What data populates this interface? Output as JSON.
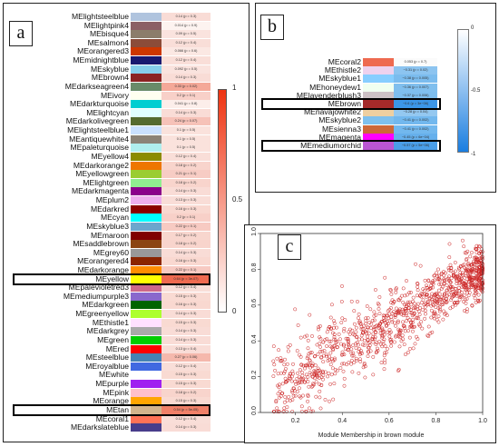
{
  "panel_a": {
    "label": "a",
    "rows": [
      {
        "name": "MElightsteelblue",
        "swatch": "#b0c4de",
        "cell": "0.14 (p = 0.3)",
        "heat": "#f9dcd6"
      },
      {
        "name": "MElightpink4",
        "swatch": "#8b5f65",
        "cell": "0.014 (p = 0.9)",
        "heat": "#fdf3f0"
      },
      {
        "name": "MEbisque4",
        "swatch": "#8b7d6b",
        "cell": "0.09 (p = 0.5)",
        "heat": "#fae3de"
      },
      {
        "name": "MEsalmon4",
        "swatch": "#8b4c39",
        "cell": "0.12 (p = 0.4)",
        "heat": "#f9ded8"
      },
      {
        "name": "MEorangered3",
        "swatch": "#cd3700",
        "cell": "0.066 (p = 0.6)",
        "heat": "#fbe8e3"
      },
      {
        "name": "MEmidnightblue",
        "swatch": "#191970",
        "cell": "0.12 (p = 0.4)",
        "heat": "#f9ded8"
      },
      {
        "name": "MEskyblue",
        "swatch": "#87ceeb",
        "cell": "0.092 (p = 0.5)",
        "heat": "#fae3de"
      },
      {
        "name": "MEbrown4",
        "swatch": "#8b2323",
        "cell": "0.14 (p = 0.3)",
        "heat": "#f9dcd6"
      },
      {
        "name": "MEdarkseagreen4",
        "swatch": "#698b69",
        "cell": "0.33 (p = 0.02)",
        "heat": "#f4a898"
      },
      {
        "name": "MEivory",
        "swatch": "#fffff0",
        "cell": "0.2 (p = 0.1)",
        "heat": "#f8d0c8"
      },
      {
        "name": "MEdarkturquoise",
        "swatch": "#00ced1",
        "cell": "0.041 (p = 0.8)",
        "heat": "#fceeea"
      },
      {
        "name": "MElightcyan",
        "swatch": "#e0ffff",
        "cell": "0.14 (p = 0.3)",
        "heat": "#f9dcd6"
      },
      {
        "name": "MEdarkolivegreen",
        "swatch": "#556b2f",
        "cell": "0.24 (p = 0.07)",
        "heat": "#f6c2b8"
      },
      {
        "name": "MElightsteelblue1",
        "swatch": "#cae1ff",
        "cell": "0.1 (p = 0.5)",
        "heat": "#fae2dc"
      },
      {
        "name": "MEantiquewhite4",
        "swatch": "#8b8378",
        "cell": "0.1 (p = 0.5)",
        "heat": "#fae2dc"
      },
      {
        "name": "MEpaleturquoise",
        "swatch": "#afeeee",
        "cell": "0.1 (p = 0.5)",
        "heat": "#fae2dc"
      },
      {
        "name": "MEyellow4",
        "swatch": "#8b8b00",
        "cell": "0.12 (p = 0.4)",
        "heat": "#f9ded8"
      },
      {
        "name": "MEdarkorange2",
        "swatch": "#ee7600",
        "cell": "0.18 (p = 0.2)",
        "heat": "#f8d4cc"
      },
      {
        "name": "MEyellowgreen",
        "swatch": "#9acd32",
        "cell": "0.21 (p = 0.1)",
        "heat": "#f7ccc4"
      },
      {
        "name": "MElightgreen",
        "swatch": "#90ee90",
        "cell": "0.18 (p = 0.2)",
        "heat": "#f8d4cc"
      },
      {
        "name": "MEdarkmagenta",
        "swatch": "#8b008b",
        "cell": "0.14 (p = 0.3)",
        "heat": "#f9dcd6"
      },
      {
        "name": "MEplum2",
        "swatch": "#eeaeee",
        "cell": "0.13 (p = 0.3)",
        "heat": "#f9ddd7"
      },
      {
        "name": "MEdarkred",
        "swatch": "#8b0000",
        "cell": "0.16 (p = 0.3)",
        "heat": "#f9d8d0"
      },
      {
        "name": "MEcyan",
        "swatch": "#00ffff",
        "cell": "0.2 (p = 0.1)",
        "heat": "#f8d0c8"
      },
      {
        "name": "MEskyblue3",
        "swatch": "#6ca6cd",
        "cell": "0.22 (p = 0.1)",
        "heat": "#f7cac2"
      },
      {
        "name": "MEmaroon",
        "swatch": "#800000",
        "cell": "0.17 (p = 0.2)",
        "heat": "#f8d6ce"
      },
      {
        "name": "MEsaddlebrown",
        "swatch": "#8b4513",
        "cell": "0.18 (p = 0.2)",
        "heat": "#f8d4cc"
      },
      {
        "name": "MEgrey60",
        "swatch": "#999999",
        "cell": "0.14 (p = 0.3)",
        "heat": "#f9dcd6"
      },
      {
        "name": "MEorangered4",
        "swatch": "#8b2500",
        "cell": "0.16 (p = 0.3)",
        "heat": "#f9d8d0"
      },
      {
        "name": "MEdarkorange",
        "swatch": "#ff8c00",
        "cell": "0.22 (p = 0.1)",
        "heat": "#f7cac2"
      },
      {
        "name": "MEyellow",
        "swatch": "#ffff00",
        "cell": "0.64 (p = 3e-07)",
        "heat": "#ef6a50"
      },
      {
        "name": "MEpalevioletred3",
        "swatch": "#cd6889",
        "cell": "0.12 (p = 0.4)",
        "heat": "#f9ded8"
      },
      {
        "name": "MEmediumpurple3",
        "swatch": "#8968cd",
        "cell": "0.15 (p = 0.3)",
        "heat": "#f9dad2"
      },
      {
        "name": "MEdarkgreen",
        "swatch": "#006400",
        "cell": "0.16 (p = 0.3)",
        "heat": "#f9d8d0"
      },
      {
        "name": "MEgreenyellow",
        "swatch": "#adff2f",
        "cell": "0.14 (p = 0.3)",
        "heat": "#f9dcd6"
      },
      {
        "name": "MEthistle1",
        "swatch": "#ffe1ff",
        "cell": "0.15 (p = 0.3)",
        "heat": "#f9dad2"
      },
      {
        "name": "MEdarkgrey",
        "swatch": "#a9a9a9",
        "cell": "0.14 (p = 0.3)",
        "heat": "#f9dcd6"
      },
      {
        "name": "MEgreen",
        "swatch": "#00cd00",
        "cell": "0.14 (p = 0.3)",
        "heat": "#f9dcd6"
      },
      {
        "name": "MEred",
        "swatch": "#ff0000",
        "cell": "0.13 (p = 0.4)",
        "heat": "#f9ddd7"
      },
      {
        "name": "MEsteelblue",
        "swatch": "#4682b4",
        "cell": "0.27 (p = 0.06)",
        "heat": "#f5b8ac"
      },
      {
        "name": "MEroyalblue",
        "swatch": "#4169e1",
        "cell": "0.12 (p = 0.4)",
        "heat": "#f9ded8"
      },
      {
        "name": "MEwhite",
        "swatch": "#ffffff",
        "cell": "0.15 (p = 0.3)",
        "heat": "#f9dad2"
      },
      {
        "name": "MEpurple",
        "swatch": "#a020f0",
        "cell": "0.15 (p = 0.3)",
        "heat": "#f9dad2"
      },
      {
        "name": "MEpink",
        "swatch": "#ffc0cb",
        "cell": "0.18 (p = 0.2)",
        "heat": "#f8d4cc"
      },
      {
        "name": "MEorange",
        "swatch": "#ffa500",
        "cell": "0.15 (p = 0.3)",
        "heat": "#f9dad2"
      },
      {
        "name": "MEtan",
        "swatch": "#d2b48c",
        "cell": "0.54 (p = 5e-05)",
        "heat": "#f08068"
      },
      {
        "name": "MEcoral1",
        "swatch": "#ff7256",
        "cell": "0.12 (p = 0.4)",
        "heat": "#f9ded8"
      },
      {
        "name": "MEdarkslateblue",
        "swatch": "#483d8b",
        "cell": "0.14 (p = 0.3)",
        "heat": "#f9dcd6"
      }
    ],
    "highlighted_rows": [
      30,
      45
    ],
    "colorbar": {
      "ticks": [
        "1",
        "0.5",
        "0"
      ],
      "top_color": "#ee3311",
      "bottom_color": "#ffffff"
    }
  },
  "panel_b": {
    "label": "b",
    "rows": [
      {
        "name": "MEcoral2",
        "swatch": "#ee6a50",
        "cell": "0.053 (p = 0.7)",
        "heat": "#fbfbfb"
      },
      {
        "name": "MEthistle2",
        "swatch": "#eed2ee",
        "cell": "−0.31 (p = 0.02)",
        "heat": "#8cc4f0"
      },
      {
        "name": "MEskyblue1",
        "swatch": "#87ceff",
        "cell": "−0.38 (p = 0.005)",
        "heat": "#7bbcee"
      },
      {
        "name": "MEhoneydew1",
        "swatch": "#f0fff0",
        "cell": "−0.36 (p = 0.007)",
        "heat": "#80bfee"
      },
      {
        "name": "MElavenderblush3",
        "swatch": "#cdc1c5",
        "cell": "−0.37 (p = 0.006)",
        "heat": "#7ebeee"
      },
      {
        "name": "MEbrown",
        "swatch": "#a52a2a",
        "cell": "−0.6 (p = 3e−06)",
        "heat": "#3c96e8"
      },
      {
        "name": "MEnavajowhite2",
        "swatch": "#eecfa1",
        "cell": "−0.28 (p = 0.04)",
        "heat": "#94c8f0"
      },
      {
        "name": "MEskyblue2",
        "swatch": "#7ec0ee",
        "cell": "−0.41 (p = 0.002)",
        "heat": "#72b8ee"
      },
      {
        "name": "MEsienna3",
        "swatch": "#cd6839",
        "cell": "−0.41 (p = 0.002)",
        "heat": "#72b8ee"
      },
      {
        "name": "MEmagenta",
        "swatch": "#ff00ff",
        "cell": "−0.45 (p = 6e−04)",
        "heat": "#66b0ec"
      },
      {
        "name": "MEmediumorchid",
        "swatch": "#ba55d3",
        "cell": "−0.57 (p = 5e−06)",
        "heat": "#4a9ee8"
      }
    ],
    "highlighted_rows": [
      5,
      10
    ],
    "colorbar": {
      "ticks": [
        "0",
        "-0.5",
        "-1"
      ],
      "top_color": "#ffffff",
      "bottom_color": "#1a7ee0"
    }
  },
  "panel_c": {
    "label": "c",
    "chart_data": {
      "type": "scatter",
      "xlabel": "Module Membership in brown module",
      "ylabel": "",
      "xlim": [
        0.05,
        1.0
      ],
      "ylim": [
        0.0,
        1.0
      ],
      "xticks": [
        "0.2",
        "0.4",
        "0.6",
        "0.8",
        "1.0"
      ],
      "yticks": [
        "0.0",
        "0.2",
        "0.4",
        "0.6",
        "0.8",
        "1.0"
      ],
      "n_points": 1100,
      "trend": {
        "slope": 0.78,
        "intercept": 0.02,
        "spread": 0.12
      },
      "marker_color": "#cc2222"
    }
  }
}
